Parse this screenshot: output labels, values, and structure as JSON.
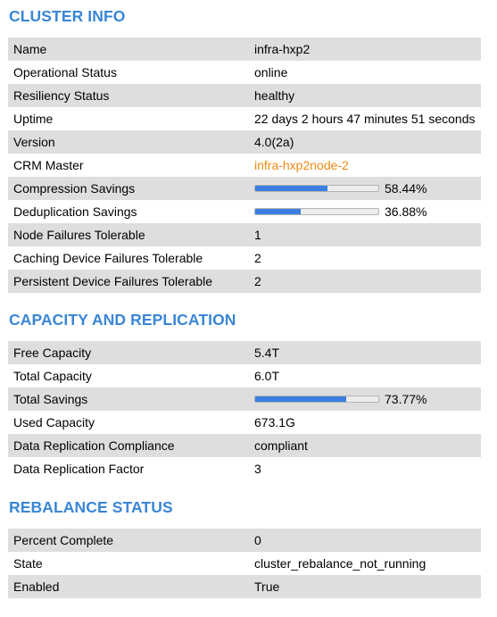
{
  "cluster_info": {
    "title": "CLUSTER INFO",
    "rows": [
      {
        "label": "Name",
        "value": "infra-hxp2"
      },
      {
        "label": "Operational Status",
        "value": "online"
      },
      {
        "label": "Resiliency Status",
        "value": "healthy"
      },
      {
        "label": "Uptime",
        "value": "22 days 2 hours 47 minutes 51 seconds"
      },
      {
        "label": "Version",
        "value": "4.0(2a)"
      },
      {
        "label": "CRM Master",
        "value": "infra-hxp2node-2",
        "link_color": "#ef8a12"
      },
      {
        "label": "Compression Savings",
        "value": "58.44%",
        "progress": 0.5844
      },
      {
        "label": "Deduplication Savings",
        "value": "36.88%",
        "progress": 0.3688
      },
      {
        "label": "Node Failures Tolerable",
        "value": "1"
      },
      {
        "label": "Caching Device Failures Tolerable",
        "value": "2"
      },
      {
        "label": "Persistent Device Failures Tolerable",
        "value": "2"
      }
    ]
  },
  "capacity": {
    "title": "CAPACITY AND REPLICATION",
    "rows": [
      {
        "label": "Free Capacity",
        "value": "5.4T"
      },
      {
        "label": "Total Capacity",
        "value": "6.0T"
      },
      {
        "label": "Total Savings",
        "value": "73.77%",
        "progress": 0.7377
      },
      {
        "label": "Used Capacity",
        "value": "673.1G"
      },
      {
        "label": "Data Replication Compliance",
        "value": "compliant"
      },
      {
        "label": "Data Replication Factor",
        "value": "3"
      }
    ]
  },
  "rebalance": {
    "title": "REBALANCE STATUS",
    "rows": [
      {
        "label": "Percent Complete",
        "value": "0"
      },
      {
        "label": "State",
        "value": "cluster_rebalance_not_running"
      },
      {
        "label": "Enabled",
        "value": "True"
      }
    ]
  },
  "colors": {
    "heading": "#3a86d6",
    "row_shade": "#dedede",
    "link": "#ef8a12",
    "progress_fill": "#3a7fe0"
  }
}
